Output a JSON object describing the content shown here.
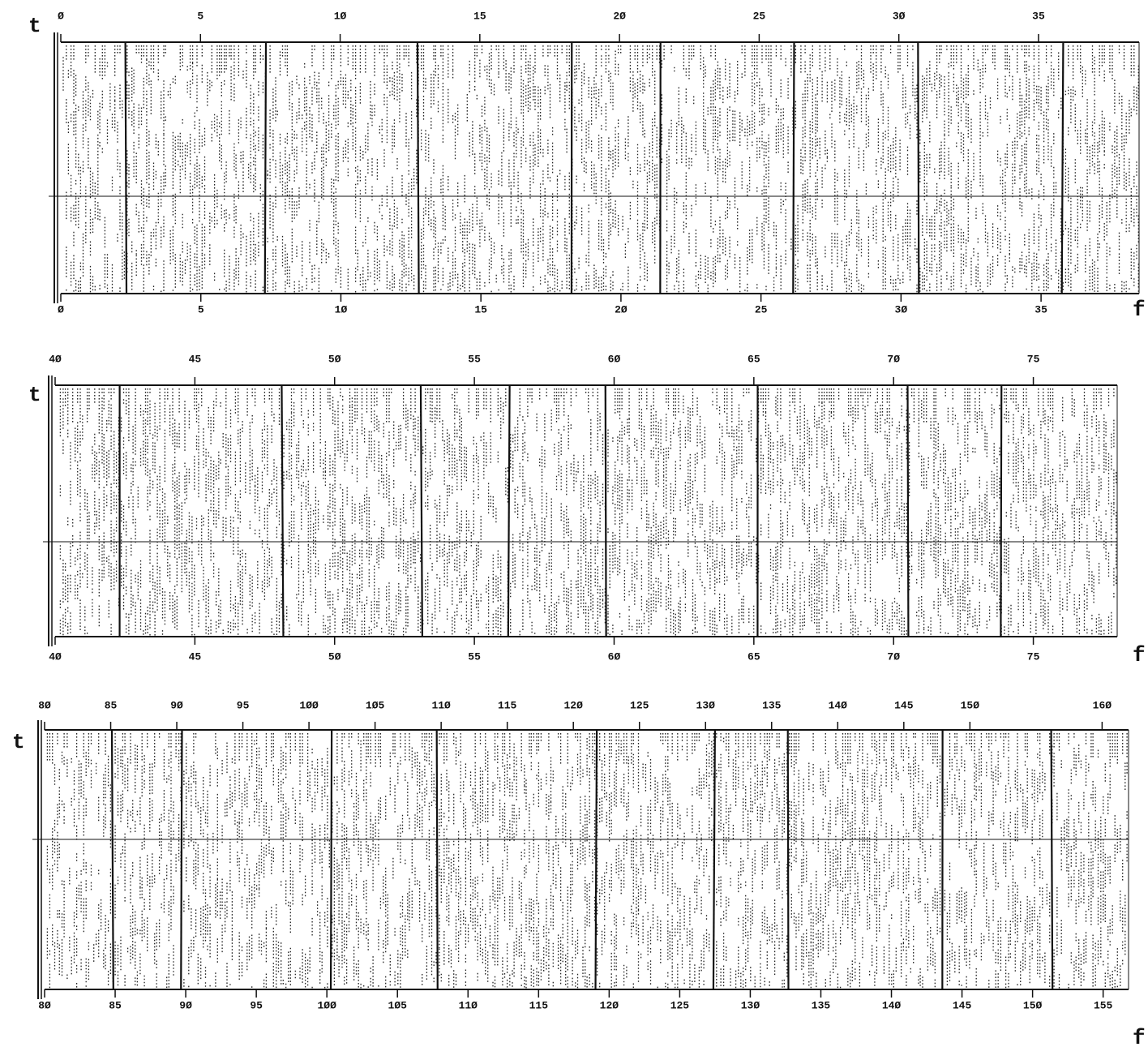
{
  "chart_data": [
    {
      "type": "spectrogram",
      "ylabel": "t",
      "xlabel": "f",
      "x2lim": [
        0,
        38.6
      ],
      "x2ticks": [
        {
          "value": 0,
          "label": "Ø"
        },
        5,
        {
          "value": 10,
          "label": "1Ø"
        },
        15,
        {
          "value": 20,
          "label": "2Ø"
        },
        25,
        {
          "value": 30,
          "label": "3Ø"
        },
        35
      ],
      "xlim": [
        0,
        38.5
      ],
      "xticks": [
        {
          "value": 0,
          "label": "Ø"
        },
        5,
        {
          "value": 10,
          "label": "1Ø"
        },
        15,
        {
          "value": 20,
          "label": "2Ø"
        },
        25,
        {
          "value": 30,
          "label": "3Ø"
        },
        35
      ]
    },
    {
      "type": "spectrogram",
      "ylabel": "t",
      "xlabel": "f",
      "x2lim": [
        40,
        78
      ],
      "x2ticks": [
        {
          "value": 40,
          "label": "4Ø"
        },
        45,
        {
          "value": 50,
          "label": "5Ø"
        },
        55,
        {
          "value": 60,
          "label": "6Ø"
        },
        65,
        {
          "value": 70,
          "label": "7Ø"
        },
        75
      ],
      "xlim": [
        40,
        78
      ],
      "xticks": [
        {
          "value": 40,
          "label": "4Ø"
        },
        45,
        {
          "value": 50,
          "label": "5Ø"
        },
        55,
        {
          "value": 60,
          "label": "6Ø"
        },
        65,
        {
          "value": 70,
          "label": "7Ø"
        },
        75
      ]
    },
    {
      "type": "spectrogram",
      "ylabel": "t",
      "xlabel": "f",
      "x2lim": [
        80,
        162
      ],
      "x2ticks": [
        {
          "value": 80,
          "label": "8Ø"
        },
        85,
        {
          "value": 90,
          "label": "9Ø"
        },
        95,
        {
          "value": 100,
          "label": "1ØØ"
        },
        {
          "value": 105,
          "label": "1Ø5"
        },
        {
          "value": 110,
          "label": "11Ø"
        },
        115,
        {
          "value": 120,
          "label": "12Ø"
        },
        125,
        {
          "value": 130,
          "label": "13Ø"
        },
        135,
        {
          "value": 140,
          "label": "14Ø"
        },
        145,
        {
          "value": 150,
          "label": "15Ø"
        },
        {
          "value": 160,
          "label": "16Ø"
        }
      ],
      "xlim": [
        80,
        156.8
      ],
      "xticks": [
        {
          "value": 80,
          "label": "8Ø"
        },
        85,
        {
          "value": 90,
          "label": "9Ø"
        },
        95,
        {
          "value": 100,
          "label": "1ØØ"
        },
        {
          "value": 105,
          "label": "1Ø5"
        },
        {
          "value": 110,
          "label": "11Ø"
        },
        115,
        {
          "value": 120,
          "label": "12Ø"
        },
        125,
        {
          "value": 130,
          "label": "13Ø"
        },
        135,
        {
          "value": 140,
          "label": "14Ø"
        },
        145,
        {
          "value": 150,
          "label": "15Ø"
        },
        155
      ]
    }
  ]
}
